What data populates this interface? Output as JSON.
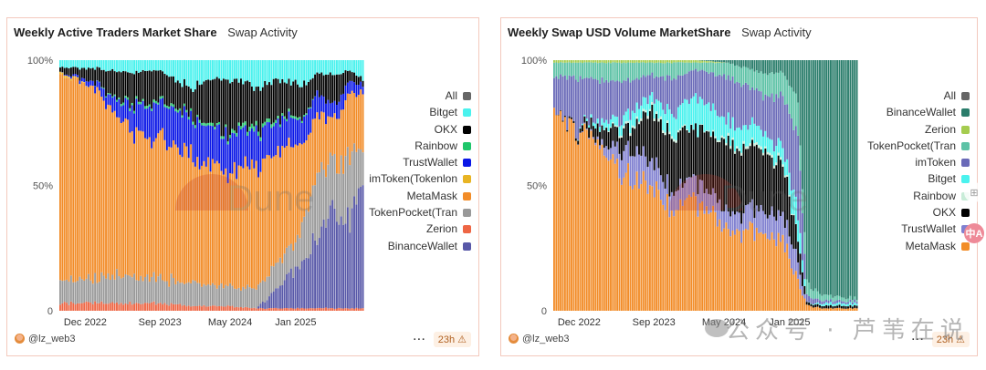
{
  "panels": [
    {
      "title": "Weekly Active Traders Market Share",
      "subtitle": "Swap Activity",
      "author": "@lz_web3",
      "age": "23h",
      "more_label": "···",
      "warning_icon": "⚠",
      "legend": [
        {
          "label": "All",
          "color": "#666666"
        },
        {
          "label": "Bitget",
          "color": "#4af2ee"
        },
        {
          "label": "OKX",
          "color": "#000000"
        },
        {
          "label": "Rainbow",
          "color": "#1fc66a"
        },
        {
          "label": "TrustWallet",
          "color": "#0a17e6"
        },
        {
          "label": "imToken(Tokenlon",
          "color": "#e8b423"
        },
        {
          "label": "MetaMask",
          "color": "#f28c28"
        },
        {
          "label": "TokenPocket(Tran",
          "color": "#999999"
        },
        {
          "label": "Zerion",
          "color": "#ee6644"
        },
        {
          "label": "BinanceWallet",
          "color": "#5858a8"
        }
      ]
    },
    {
      "title": "Weekly Swap USD Volume MarketShare",
      "subtitle": "Swap Activity",
      "author": "@lz_web3",
      "age": "23h",
      "more_label": "···",
      "warning_icon": "⚠",
      "legend": [
        {
          "label": "All",
          "color": "#666666"
        },
        {
          "label": "BinanceWallet",
          "color": "#2a7d6b"
        },
        {
          "label": "Zerion",
          "color": "#a5cc4f"
        },
        {
          "label": "TokenPocket(Tran",
          "color": "#5dc2a6"
        },
        {
          "label": "imToken",
          "color": "#6a6ab8"
        },
        {
          "label": "Bitget",
          "color": "#4af2ee"
        },
        {
          "label": "Rainbow",
          "color": "#c8ecd8"
        },
        {
          "label": "OKX",
          "color": "#000000"
        },
        {
          "label": "TrustWallet",
          "color": "#8080d0"
        },
        {
          "label": "MetaMask",
          "color": "#f28c28"
        }
      ]
    }
  ],
  "watermark": "公众号 · 芦苇在说",
  "float_buttons": {
    "apps": "⊞",
    "translate": "中A"
  },
  "chart_data": [
    {
      "type": "bar",
      "stacked": true,
      "title": "Weekly Active Traders Market Share",
      "subtitle": "Swap Activity",
      "xlabel": "",
      "ylabel": "",
      "ylim": [
        0,
        100
      ],
      "y_ticks": [
        "0",
        "50%",
        "100%"
      ],
      "x_ticks": [
        "Dec 2022",
        "Sep 2023",
        "May 2024",
        "Jan 2025"
      ],
      "x_range": [
        "Dec 2022",
        "Jul 2025"
      ],
      "weeks": 140,
      "grid": false,
      "legend_position": "right",
      "series_order_bottom_to_top": [
        "Zerion",
        "BinanceWallet",
        "TokenPocket(Tran",
        "MetaMask",
        "imToken(Tokenlon",
        "TrustWallet",
        "Rainbow",
        "OKX",
        "Bitget"
      ],
      "keyframes": {
        "week": [
          0,
          15,
          30,
          45,
          60,
          75,
          90,
          100,
          110,
          118,
          125,
          132,
          139
        ],
        "Zerion": [
          3,
          3,
          3,
          3,
          2,
          2,
          1,
          1,
          1,
          1,
          1,
          1,
          1
        ],
        "BinanceWallet": [
          0,
          0,
          0,
          0,
          0,
          0,
          0,
          8,
          18,
          28,
          40,
          35,
          50
        ],
        "TokenPocket(Tran": [
          9,
          9,
          11,
          10,
          9,
          8,
          8,
          10,
          12,
          25,
          20,
          25,
          15
        ],
        "MetaMask": [
          82,
          78,
          60,
          55,
          52,
          45,
          48,
          45,
          35,
          25,
          15,
          25,
          22
        ],
        "imToken(Tokenlon": [
          1,
          0,
          0,
          0,
          0,
          0,
          0,
          0,
          0,
          0,
          0,
          0,
          0
        ],
        "TrustWallet": [
          0,
          2,
          8,
          15,
          15,
          15,
          14,
          12,
          10,
          8,
          6,
          5,
          3
        ],
        "Rainbow": [
          0,
          0,
          1,
          1,
          1,
          1,
          2,
          1,
          1,
          0,
          0,
          0,
          0
        ],
        "OKX": [
          2,
          5,
          12,
          12,
          10,
          22,
          16,
          15,
          13,
          8,
          12,
          5,
          2
        ],
        "Bitget": [
          3,
          3,
          5,
          4,
          11,
          7,
          11,
          8,
          10,
          5,
          6,
          4,
          7
        ]
      }
    },
    {
      "type": "bar",
      "stacked": true,
      "title": "Weekly Swap USD Volume MarketShare",
      "subtitle": "Swap Activity",
      "xlabel": "",
      "ylabel": "",
      "ylim": [
        0,
        100
      ],
      "y_ticks": [
        "0",
        "50%",
        "100%"
      ],
      "x_ticks": [
        "Dec 2022",
        "Sep 2023",
        "May 2024",
        "Jan 2025"
      ],
      "x_range": [
        "Dec 2022",
        "Jul 2025"
      ],
      "weeks": 140,
      "grid": false,
      "legend_position": "right",
      "series_order_bottom_to_top": [
        "MetaMask",
        "TrustWallet",
        "OKX",
        "Rainbow",
        "Bitget",
        "imToken",
        "TokenPocket(Tran",
        "Zerion",
        "BinanceWallet"
      ],
      "keyframes": {
        "week": [
          0,
          10,
          20,
          35,
          45,
          55,
          65,
          80,
          95,
          105,
          112,
          116,
          125,
          139
        ],
        "MetaMask": [
          78,
          72,
          66,
          52,
          50,
          40,
          45,
          30,
          32,
          28,
          12,
          2,
          1,
          1
        ],
        "TrustWallet": [
          0,
          0,
          1,
          12,
          10,
          8,
          8,
          8,
          9,
          10,
          8,
          0,
          0,
          0
        ],
        "OKX": [
          0,
          1,
          6,
          8,
          20,
          22,
          20,
          28,
          24,
          20,
          10,
          1,
          1,
          1
        ],
        "Rainbow": [
          0,
          0,
          0,
          1,
          1,
          1,
          0,
          1,
          1,
          1,
          0,
          0,
          0,
          0
        ],
        "Bitget": [
          0,
          0,
          2,
          5,
          5,
          8,
          12,
          8,
          7,
          6,
          10,
          0,
          1,
          1
        ],
        "imToken": [
          15,
          20,
          17,
          14,
          8,
          14,
          11,
          18,
          14,
          20,
          30,
          3,
          1,
          1
        ],
        "TokenPocket(Tran": [
          6,
          6,
          7,
          7,
          5,
          6,
          3,
          6,
          8,
          10,
          15,
          5,
          2,
          1
        ],
        "Zerion": [
          1,
          1,
          1,
          1,
          1,
          1,
          1,
          0,
          0,
          0,
          0,
          0,
          0,
          0
        ],
        "BinanceWallet": [
          0,
          0,
          0,
          0,
          0,
          0,
          0,
          1,
          5,
          5,
          15,
          89,
          94,
          95
        ]
      }
    }
  ]
}
